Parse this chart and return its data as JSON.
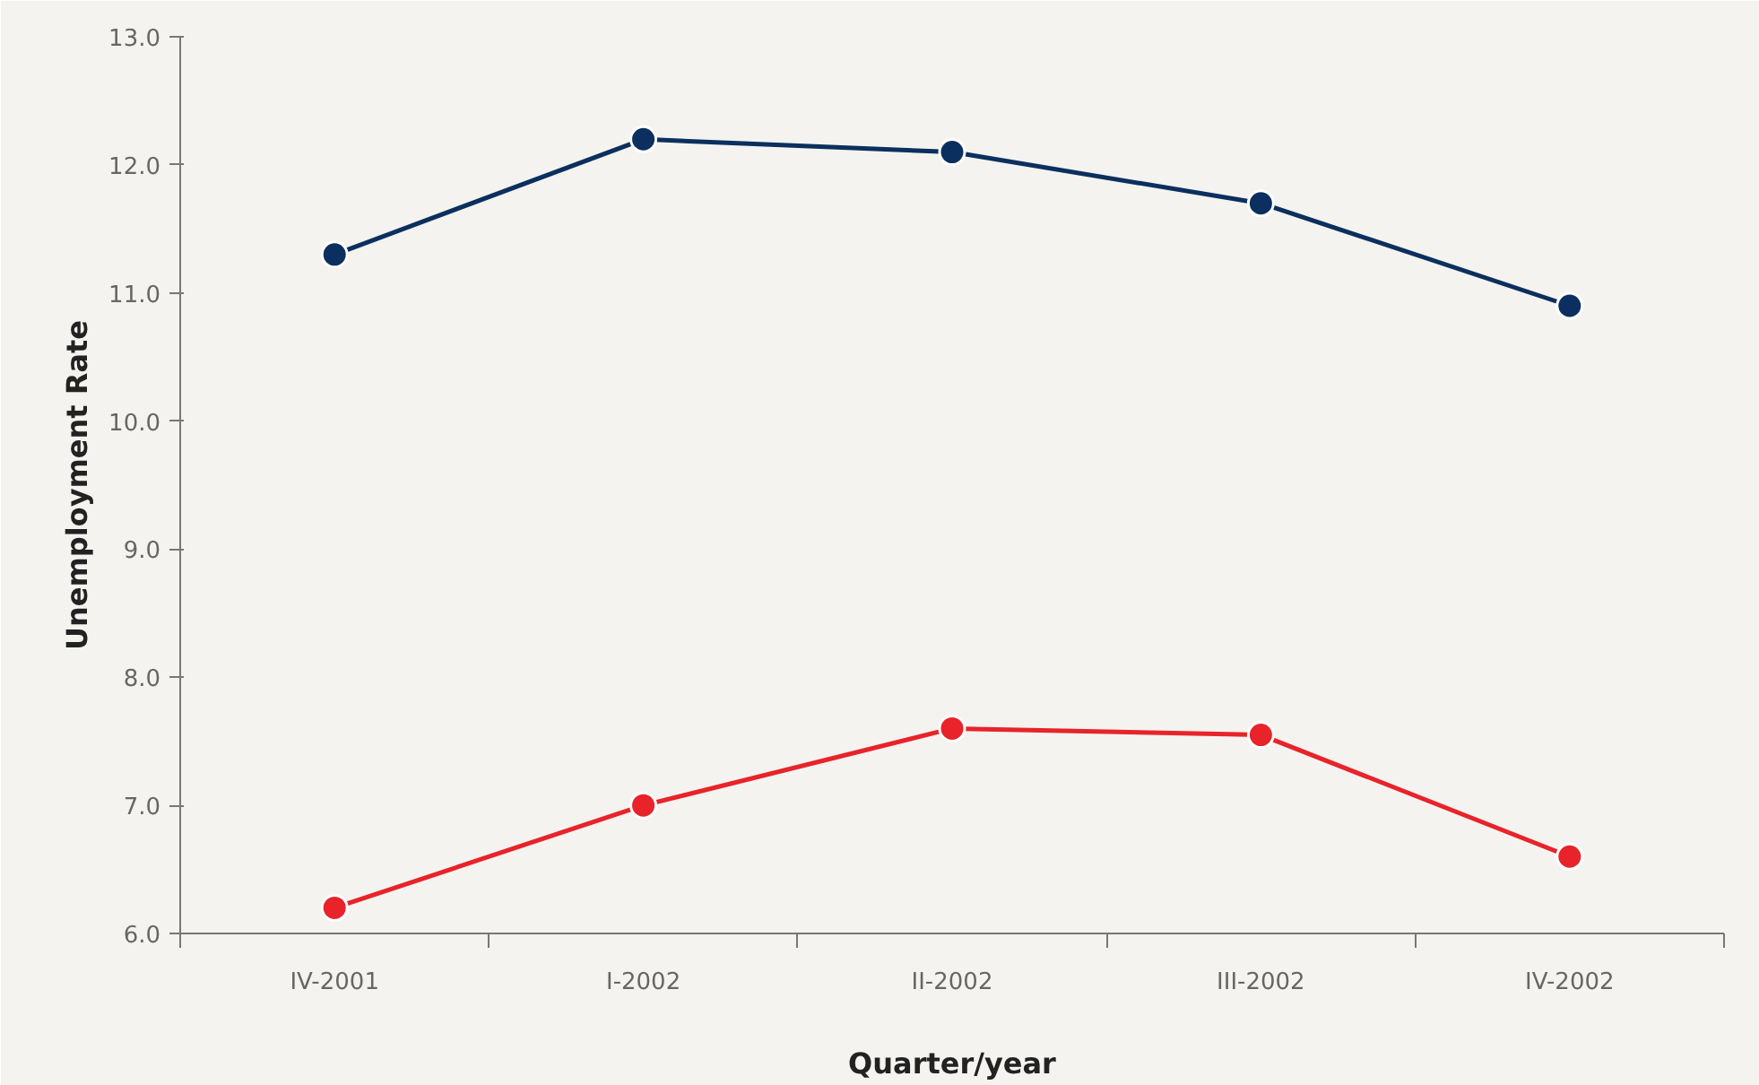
{
  "chart_data": {
    "type": "line",
    "xlabel": "Quarter/year",
    "ylabel": "Unemployment Rate",
    "categories": [
      "IV-2001",
      "I-2002",
      "II-2002",
      "III-2002",
      "IV-2002"
    ],
    "series": [
      {
        "color": "#0b2f5e",
        "values": [
          11.3,
          12.2,
          12.1,
          11.7,
          10.9
        ]
      },
      {
        "color": "#e8232a",
        "values": [
          6.2,
          7.0,
          7.6,
          7.55,
          6.6
        ]
      }
    ],
    "ylim": [
      6,
      13
    ],
    "yticks": [
      {
        "value": 6,
        "label": "6.0"
      },
      {
        "value": 7,
        "label": "7.0"
      },
      {
        "value": 8,
        "label": "8.0"
      },
      {
        "value": 9,
        "label": "9.0"
      },
      {
        "value": 10,
        "label": "10.0"
      },
      {
        "value": 11,
        "label": "11.0"
      },
      {
        "value": 12,
        "label": "12.0"
      },
      {
        "value": 13,
        "label": "13.0"
      }
    ],
    "grid": false,
    "marker": "circle",
    "line_style": "solid"
  }
}
